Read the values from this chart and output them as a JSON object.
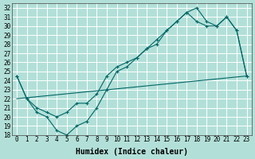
{
  "xlabel": "Humidex (Indice chaleur)",
  "background_color": "#b2e0d8",
  "grid_color": "#ffffff",
  "line_color": "#006666",
  "xlim": [
    -0.5,
    23.5
  ],
  "ylim": [
    18,
    32.5
  ],
  "xticks": [
    0,
    1,
    2,
    3,
    4,
    5,
    6,
    7,
    8,
    9,
    10,
    11,
    12,
    13,
    14,
    15,
    16,
    17,
    18,
    19,
    20,
    21,
    22,
    23
  ],
  "yticks": [
    18,
    19,
    20,
    21,
    22,
    23,
    24,
    25,
    26,
    27,
    28,
    29,
    30,
    31,
    32
  ],
  "series1_x": [
    0,
    1,
    2,
    3,
    4,
    5,
    6,
    7,
    8,
    9,
    10,
    11,
    12,
    13,
    14,
    15,
    16,
    17,
    18,
    19,
    20,
    21,
    22,
    23
  ],
  "series1_y": [
    24.5,
    22.0,
    20.5,
    20.0,
    18.5,
    18.0,
    19.0,
    19.5,
    21.0,
    23.0,
    25.0,
    25.5,
    26.5,
    27.5,
    28.0,
    29.5,
    30.5,
    31.5,
    32.0,
    30.5,
    30.0,
    31.0,
    29.5,
    24.5
  ],
  "series2_x": [
    0,
    1,
    2,
    3,
    4,
    5,
    6,
    7,
    8,
    9,
    10,
    11,
    12,
    13,
    14,
    15,
    16,
    17,
    18,
    19,
    20,
    21,
    22,
    23
  ],
  "series2_y": [
    24.5,
    22.0,
    21.0,
    20.5,
    20.0,
    20.5,
    21.5,
    21.5,
    22.5,
    24.5,
    25.5,
    26.0,
    26.5,
    27.5,
    28.5,
    29.5,
    30.5,
    31.5,
    30.5,
    30.0,
    30.0,
    31.0,
    29.5,
    24.5
  ],
  "series3_x": [
    0,
    23
  ],
  "series3_y": [
    22.0,
    24.5
  ],
  "xlabel_fontsize": 7,
  "tick_fontsize": 5.5
}
